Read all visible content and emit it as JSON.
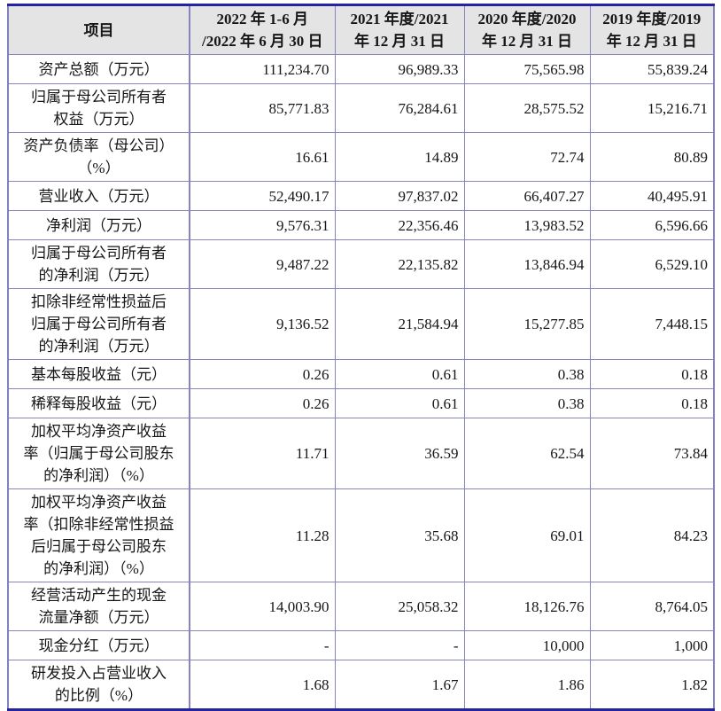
{
  "table": {
    "columns": [
      {
        "label": "项目"
      },
      {
        "label": "2022 年 1-6 月\n/2022 年 6 月 30 日"
      },
      {
        "label": "2021 年度/2021\n年 12 月 31 日"
      },
      {
        "label": "2020 年度/2020\n年 12 月 31 日"
      },
      {
        "label": "2019 年度/2019\n年 12 月 31 日"
      }
    ],
    "rows": [
      {
        "label": "资产总额（万元）",
        "values": [
          "111,234.70",
          "96,989.33",
          "75,565.98",
          "55,839.24"
        ]
      },
      {
        "label": "归属于母公司所有者\n权益（万元）",
        "values": [
          "85,771.83",
          "76,284.61",
          "28,575.52",
          "15,216.71"
        ]
      },
      {
        "label": "资产负债率（母公司）\n（%）",
        "values": [
          "16.61",
          "14.89",
          "72.74",
          "80.89"
        ]
      },
      {
        "label": "营业收入（万元）",
        "values": [
          "52,490.17",
          "97,837.02",
          "66,407.27",
          "40,495.91"
        ]
      },
      {
        "label": "净利润（万元）",
        "values": [
          "9,576.31",
          "22,356.46",
          "13,983.52",
          "6,596.66"
        ]
      },
      {
        "label": "归属于母公司所有者\n的净利润（万元）",
        "values": [
          "9,487.22",
          "22,135.82",
          "13,846.94",
          "6,529.10"
        ]
      },
      {
        "label": "扣除非经常性损益后\n归属于母公司所有者\n的净利润（万元）",
        "values": [
          "9,136.52",
          "21,584.94",
          "15,277.85",
          "7,448.15"
        ]
      },
      {
        "label": "基本每股收益（元）",
        "values": [
          "0.26",
          "0.61",
          "0.38",
          "0.18"
        ]
      },
      {
        "label": "稀释每股收益（元）",
        "values": [
          "0.26",
          "0.61",
          "0.38",
          "0.18"
        ]
      },
      {
        "label": "加权平均净资产收益\n率（归属于母公司股东\n的净利润）（%）",
        "values": [
          "11.71",
          "36.59",
          "62.54",
          "73.84"
        ]
      },
      {
        "label": "加权平均净资产收益\n率（扣除非经常性损益\n后归属于母公司股东\n的净利润）（%）",
        "values": [
          "11.28",
          "35.68",
          "69.01",
          "84.23"
        ]
      },
      {
        "label": "经营活动产生的现金\n流量净额（万元）",
        "values": [
          "14,003.90",
          "25,058.32",
          "18,126.76",
          "8,764.05"
        ]
      },
      {
        "label": "现金分红（万元）",
        "values": [
          "-",
          "-",
          "10,000",
          "1,000"
        ]
      },
      {
        "label": "研发投入占营业收入\n的比例（%）",
        "values": [
          "1.68",
          "1.67",
          "1.86",
          "1.82"
        ]
      }
    ],
    "style": {
      "header_bg": "#e4e4e4",
      "border_inner": "#8585c2",
      "border_outer": "#2424a0",
      "text_color": "#161616"
    }
  }
}
